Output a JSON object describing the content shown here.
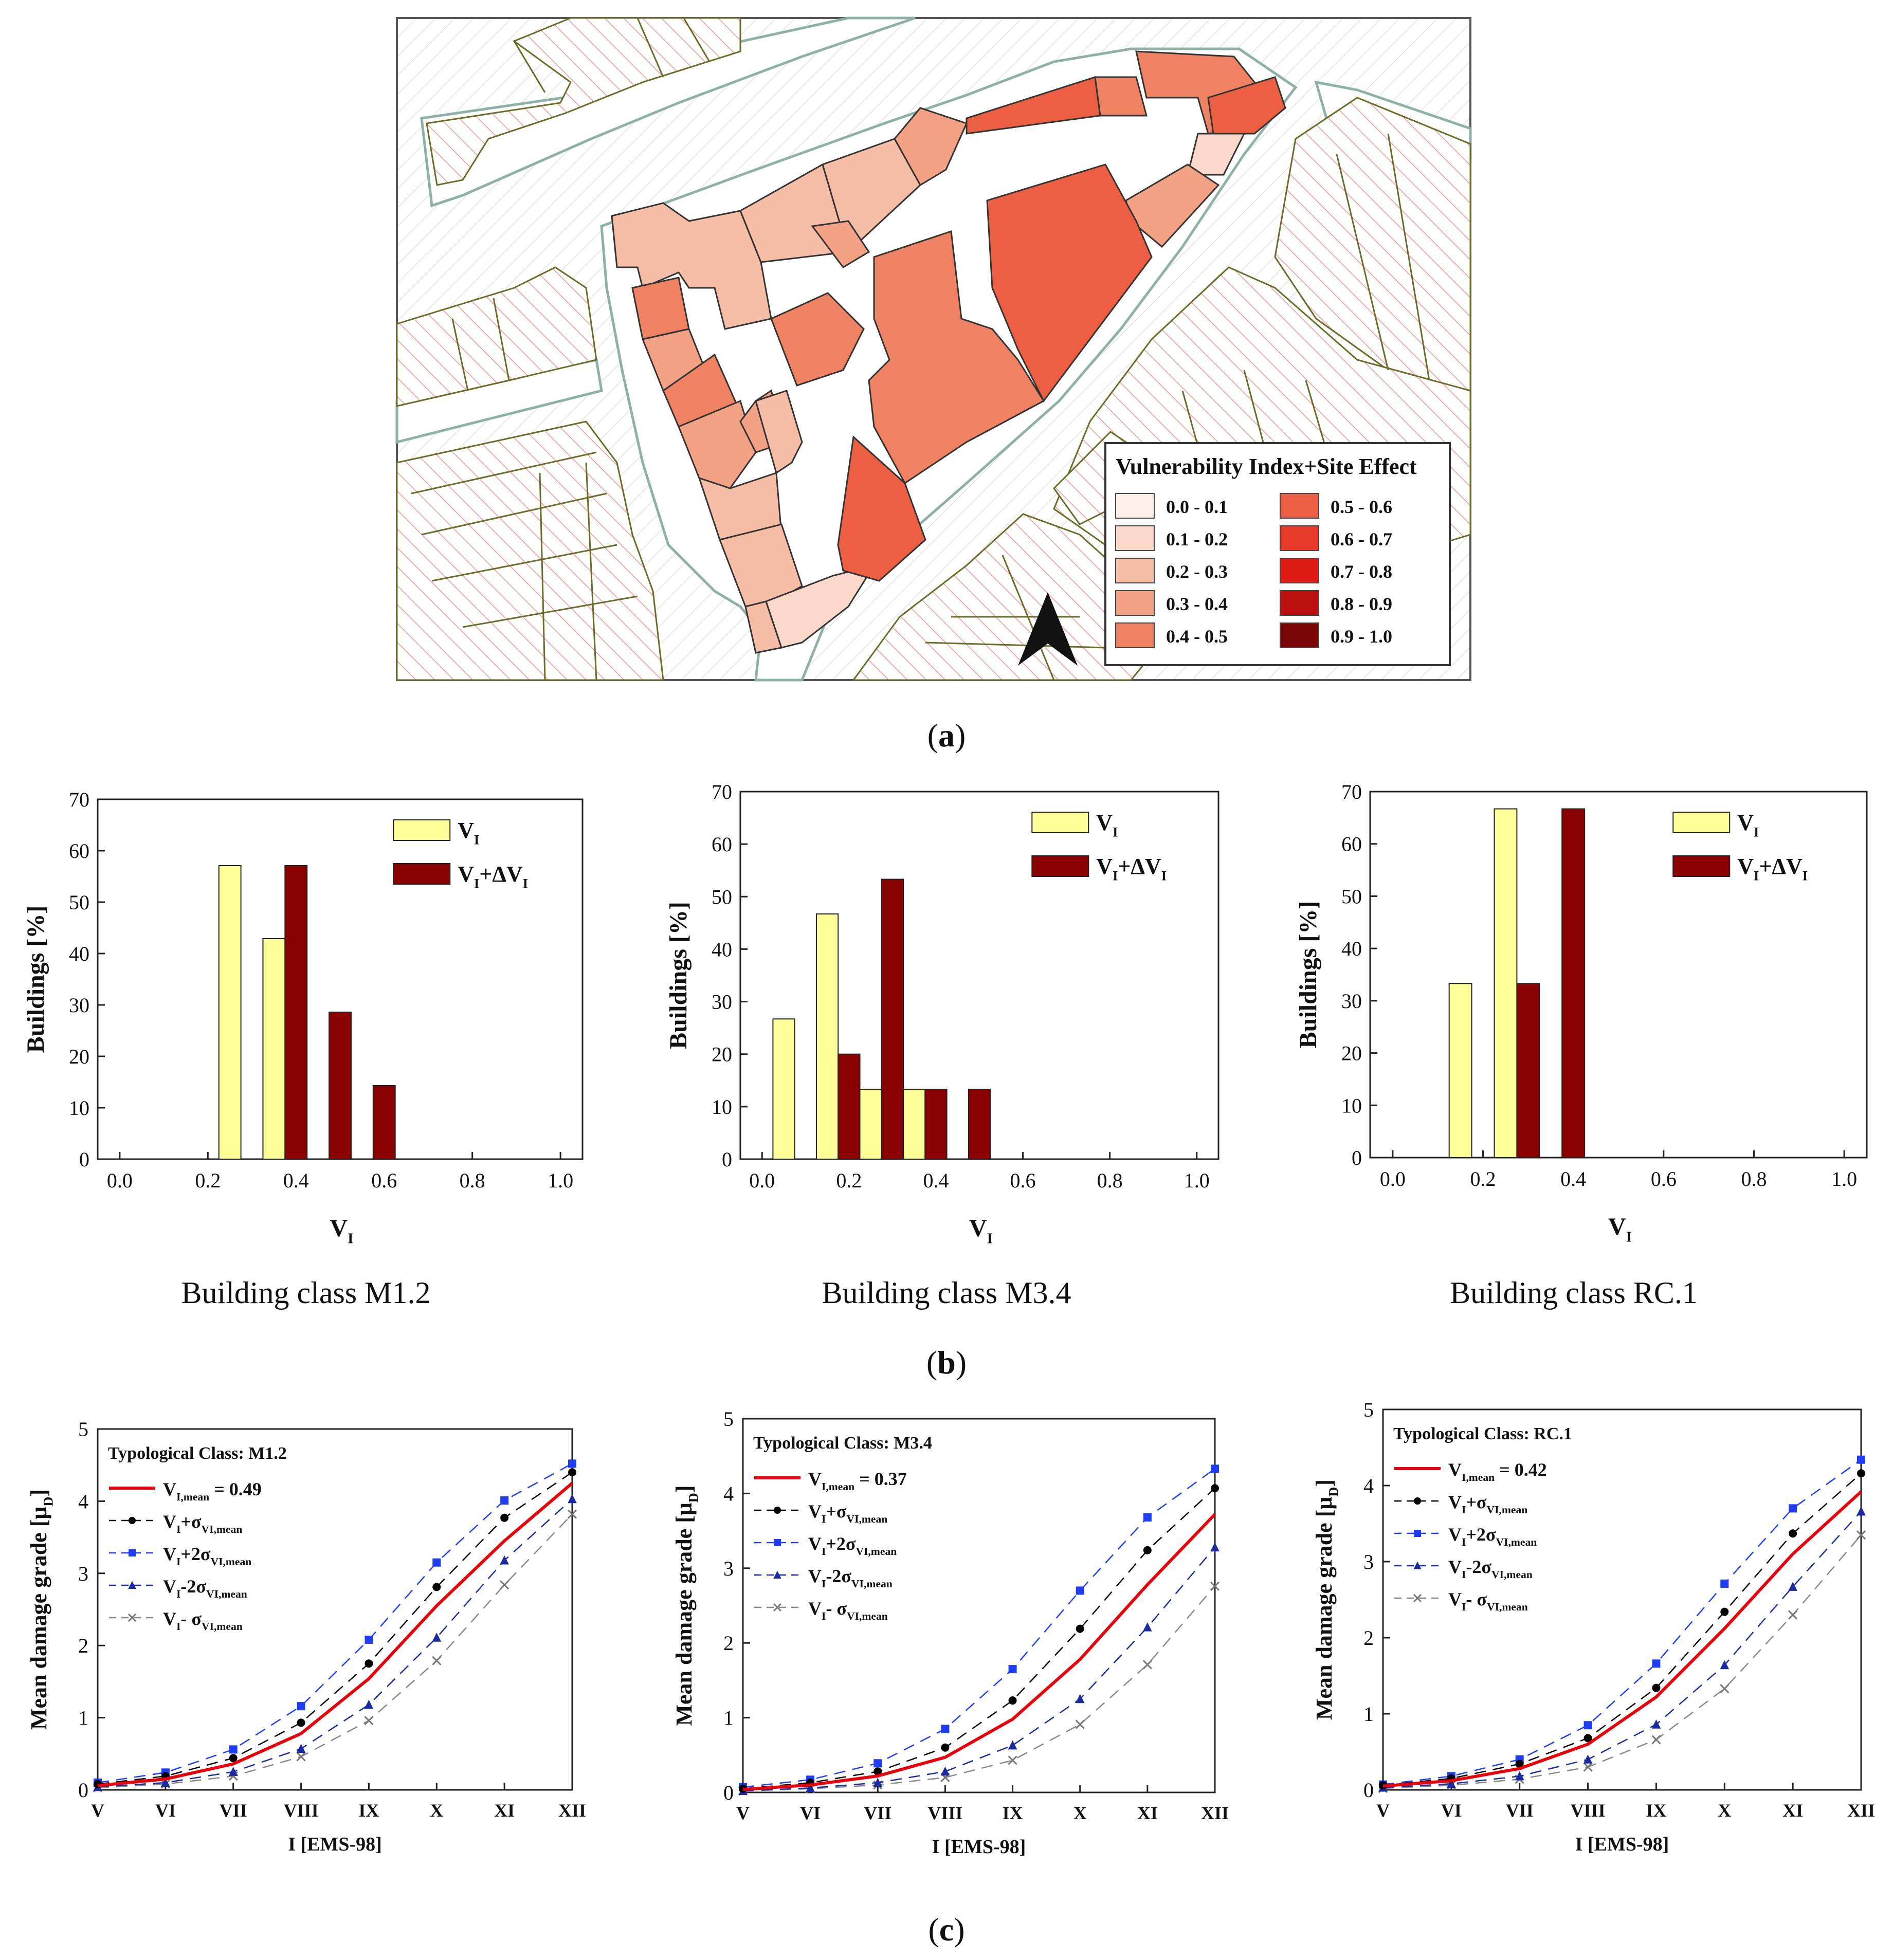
{
  "panel_labels": {
    "a": "a",
    "b": "b",
    "c": "c"
  },
  "map": {
    "legend_title": "Vulnerability Index+Site Effect",
    "legend": [
      {
        "label": "0.0 - 0.1",
        "color": "#fdf0ea"
      },
      {
        "label": "0.1 - 0.2",
        "color": "#fad9cb"
      },
      {
        "label": "0.2 - 0.3",
        "color": "#f6bea6"
      },
      {
        "label": "0.3 - 0.4",
        "color": "#f3a285"
      },
      {
        "label": "0.4 - 0.5",
        "color": "#ee8263"
      },
      {
        "label": "0.5 - 0.6",
        "color": "#ec5f42"
      },
      {
        "label": "0.6 - 0.7",
        "color": "#e83a2b"
      },
      {
        "label": "0.7 - 0.8",
        "color": "#dd1a14"
      },
      {
        "label": "0.8 - 0.9",
        "color": "#bb0f10"
      },
      {
        "label": "0.9 - 1.0",
        "color": "#7a0608"
      }
    ],
    "north_arrow": "north-arrow-icon"
  },
  "colors": {
    "vi": "#ffff99",
    "vi_dvi": "#8b0000",
    "mean": "#e8000b",
    "plus1": "#000000",
    "plus2": "#1f3df5",
    "minus2": "#1a2aa0",
    "minus1": "#888888",
    "hatch": "#e08080",
    "outline": "#6b6b2a"
  },
  "chart_data": [
    {
      "type": "bar",
      "id": "hist_m12",
      "caption": "Building class M1.2",
      "xlabel": "V",
      "xlabel_sub": "I",
      "ylabel": "Buildings [%]",
      "xlim": [
        -0.05,
        1.05
      ],
      "ylim": [
        0,
        70
      ],
      "xticks": [
        "0.0",
        "0.2",
        "0.4",
        "0.6",
        "0.8",
        "1.0"
      ],
      "yticks": [
        "0",
        "10",
        "20",
        "30",
        "40",
        "50",
        "60",
        "70"
      ],
      "bin_width": 0.05,
      "legend": [
        {
          "main": "V",
          "sub": "I",
          "tail": "",
          "tail_sub": ""
        },
        {
          "main": "V",
          "sub": "I",
          "tail": "+ΔV",
          "tail_sub": "I"
        }
      ],
      "series": [
        {
          "name": "VI",
          "bins": [
            0.25,
            0.35
          ],
          "values": [
            57.1,
            42.9
          ]
        },
        {
          "name": "VI+dVI",
          "bins": [
            0.4,
            0.5,
            0.6
          ],
          "values": [
            57.1,
            28.6,
            14.3
          ]
        }
      ]
    },
    {
      "type": "bar",
      "id": "hist_m34",
      "caption": "Building class M3.4",
      "xlabel": "V",
      "xlabel_sub": "I",
      "ylabel": "Buildings [%]",
      "xlim": [
        -0.05,
        1.05
      ],
      "ylim": [
        0,
        70
      ],
      "xticks": [
        "0.0",
        "0.2",
        "0.4",
        "0.6",
        "0.8",
        "1.0"
      ],
      "yticks": [
        "0",
        "10",
        "20",
        "30",
        "40",
        "50",
        "60",
        "70"
      ],
      "bin_width": 0.05,
      "legend": [
        {
          "main": "V",
          "sub": "I",
          "tail": "",
          "tail_sub": ""
        },
        {
          "main": "V",
          "sub": "I",
          "tail": "+ΔV",
          "tail_sub": "I"
        }
      ],
      "series": [
        {
          "name": "VI",
          "bins": [
            0.05,
            0.15,
            0.25,
            0.35
          ],
          "values": [
            26.7,
            46.7,
            13.3,
            13.3
          ]
        },
        {
          "name": "VI+dVI",
          "bins": [
            0.2,
            0.3,
            0.4,
            0.5
          ],
          "values": [
            20,
            53.3,
            13.3,
            13.3
          ]
        }
      ]
    },
    {
      "type": "bar",
      "id": "hist_rc1",
      "caption": "Building class RC.1",
      "xlabel": "V",
      "xlabel_sub": "I",
      "ylabel": "Buildings [%]",
      "xlim": [
        -0.05,
        1.05
      ],
      "ylim": [
        0,
        70
      ],
      "xticks": [
        "0.0",
        "0.2",
        "0.4",
        "0.6",
        "0.8",
        "1.0"
      ],
      "yticks": [
        "0",
        "10",
        "20",
        "30",
        "40",
        "50",
        "60",
        "70"
      ],
      "bin_width": 0.05,
      "legend": [
        {
          "main": "V",
          "sub": "I",
          "tail": "",
          "tail_sub": ""
        },
        {
          "main": "V",
          "sub": "I",
          "tail": "+ΔV",
          "tail_sub": "I"
        }
      ],
      "series": [
        {
          "name": "VI",
          "bins": [
            0.15,
            0.25
          ],
          "values": [
            33.3,
            66.7
          ]
        },
        {
          "name": "VI+dVI",
          "bins": [
            0.3,
            0.4
          ],
          "values": [
            33.3,
            66.7
          ]
        }
      ]
    },
    {
      "type": "line",
      "id": "curve_m12",
      "title": "Typological Class: M1.2",
      "xlabel": "I [EMS-98]",
      "ylabel": "Mean damage grade [μ",
      "ylabel_sub": "D",
      "ylabel_end": "]",
      "categories": [
        "V",
        "VI",
        "VII",
        "VIII",
        "IX",
        "X",
        "XI",
        "XII"
      ],
      "ylim": [
        0,
        5
      ],
      "yticks": [
        "0",
        "1",
        "2",
        "3",
        "4",
        "5"
      ],
      "legend": [
        {
          "text": "V",
          "sub": "I,mean",
          "tail": " = 0.49",
          "tail_sub": ""
        },
        {
          "text": "V",
          "sub": "I",
          "tail": "+σ",
          "tail_sub": "VI,mean"
        },
        {
          "text": "V",
          "sub": "I",
          "tail": "+2σ",
          "tail_sub": "VI,mean"
        },
        {
          "text": "V",
          "sub": "I",
          "tail": "-2σ",
          "tail_sub": "VI,mean"
        },
        {
          "text": "V",
          "sub": "I",
          "tail": "- σ",
          "tail_sub": "VI,mean"
        }
      ],
      "series": [
        {
          "name": "mean",
          "values": [
            0.06,
            0.15,
            0.36,
            0.78,
            1.54,
            2.55,
            3.45,
            4.25
          ]
        },
        {
          "name": "plus1",
          "values": [
            0.08,
            0.19,
            0.44,
            0.93,
            1.75,
            2.81,
            3.77,
            4.4
          ]
        },
        {
          "name": "plus2",
          "values": [
            0.1,
            0.24,
            0.56,
            1.16,
            2.08,
            3.15,
            4.01,
            4.52
          ]
        },
        {
          "name": "minus2",
          "values": [
            0.04,
            0.1,
            0.25,
            0.57,
            1.18,
            2.11,
            3.18,
            4.03
          ]
        },
        {
          "name": "minus1",
          "values": [
            0.03,
            0.08,
            0.19,
            0.46,
            0.96,
            1.79,
            2.84,
            3.82
          ]
        }
      ]
    },
    {
      "type": "line",
      "id": "curve_m34",
      "title": "Typological Class: M3.4",
      "xlabel": "I [EMS-98]",
      "ylabel": "Mean damage grade [μ",
      "ylabel_sub": "D",
      "ylabel_end": "]",
      "categories": [
        "V",
        "VI",
        "VII",
        "VIII",
        "IX",
        "X",
        "XI",
        "XII"
      ],
      "ylim": [
        0,
        5
      ],
      "yticks": [
        "0",
        "1",
        "2",
        "3",
        "4",
        "5"
      ],
      "legend": [
        {
          "text": "V",
          "sub": "I,mean",
          "tail": " = 0.37",
          "tail_sub": ""
        },
        {
          "text": "V",
          "sub": "I",
          "tail": "+σ",
          "tail_sub": "VI,mean"
        },
        {
          "text": "V",
          "sub": "I",
          "tail": "+2σ",
          "tail_sub": "VI,mean"
        },
        {
          "text": "V",
          "sub": "I",
          "tail": "-2σ",
          "tail_sub": "VI,mean"
        },
        {
          "text": "V",
          "sub": "I",
          "tail": "- σ",
          "tail_sub": "VI,mean"
        }
      ],
      "series": [
        {
          "name": "mean",
          "values": [
            0.04,
            0.1,
            0.22,
            0.47,
            0.98,
            1.78,
            2.78,
            3.72
          ]
        },
        {
          "name": "plus1",
          "values": [
            0.05,
            0.13,
            0.28,
            0.6,
            1.23,
            2.19,
            3.24,
            4.07
          ]
        },
        {
          "name": "plus2",
          "values": [
            0.07,
            0.17,
            0.39,
            0.85,
            1.65,
            2.7,
            3.68,
            4.33
          ]
        },
        {
          "name": "minus2",
          "values": [
            0.02,
            0.06,
            0.13,
            0.28,
            0.63,
            1.25,
            2.21,
            3.28
          ]
        },
        {
          "name": "minus1",
          "values": [
            0.02,
            0.05,
            0.1,
            0.2,
            0.43,
            0.91,
            1.71,
            2.76
          ]
        }
      ]
    },
    {
      "type": "line",
      "id": "curve_rc1",
      "title": "Typological Class: RC.1",
      "xlabel": "I [EMS-98]",
      "ylabel": "Mean damage grade [μ",
      "ylabel_sub": "D",
      "ylabel_end": "]",
      "categories": [
        "V",
        "VI",
        "VII",
        "VIII",
        "IX",
        "X",
        "XI",
        "XII"
      ],
      "ylim": [
        0,
        5
      ],
      "yticks": [
        "0",
        "1",
        "2",
        "3",
        "4",
        "5"
      ],
      "legend": [
        {
          "text": "V",
          "sub": "I,mean",
          "tail": " = 0.42",
          "tail_sub": ""
        },
        {
          "text": "V",
          "sub": "I",
          "tail": "+σ",
          "tail_sub": "VI,mean"
        },
        {
          "text": "V",
          "sub": "I",
          "tail": "+2σ",
          "tail_sub": "VI,mean"
        },
        {
          "text": "V",
          "sub": "I",
          "tail": "-2σ",
          "tail_sub": "VI,mean"
        },
        {
          "text": "V",
          "sub": "I",
          "tail": "- σ",
          "tail_sub": "VI,mean"
        }
      ],
      "series": [
        {
          "name": "mean",
          "values": [
            0.05,
            0.12,
            0.28,
            0.6,
            1.22,
            2.12,
            3.1,
            3.92
          ]
        },
        {
          "name": "plus1",
          "values": [
            0.06,
            0.15,
            0.34,
            0.68,
            1.34,
            2.34,
            3.37,
            4.16
          ]
        },
        {
          "name": "plus2",
          "values": [
            0.07,
            0.18,
            0.4,
            0.85,
            1.66,
            2.71,
            3.7,
            4.34
          ]
        },
        {
          "name": "minus2",
          "values": [
            0.03,
            0.08,
            0.18,
            0.4,
            0.86,
            1.64,
            2.67,
            3.66
          ]
        },
        {
          "name": "minus1",
          "values": [
            0.02,
            0.06,
            0.14,
            0.3,
            0.66,
            1.33,
            2.3,
            3.35
          ]
        }
      ]
    }
  ]
}
